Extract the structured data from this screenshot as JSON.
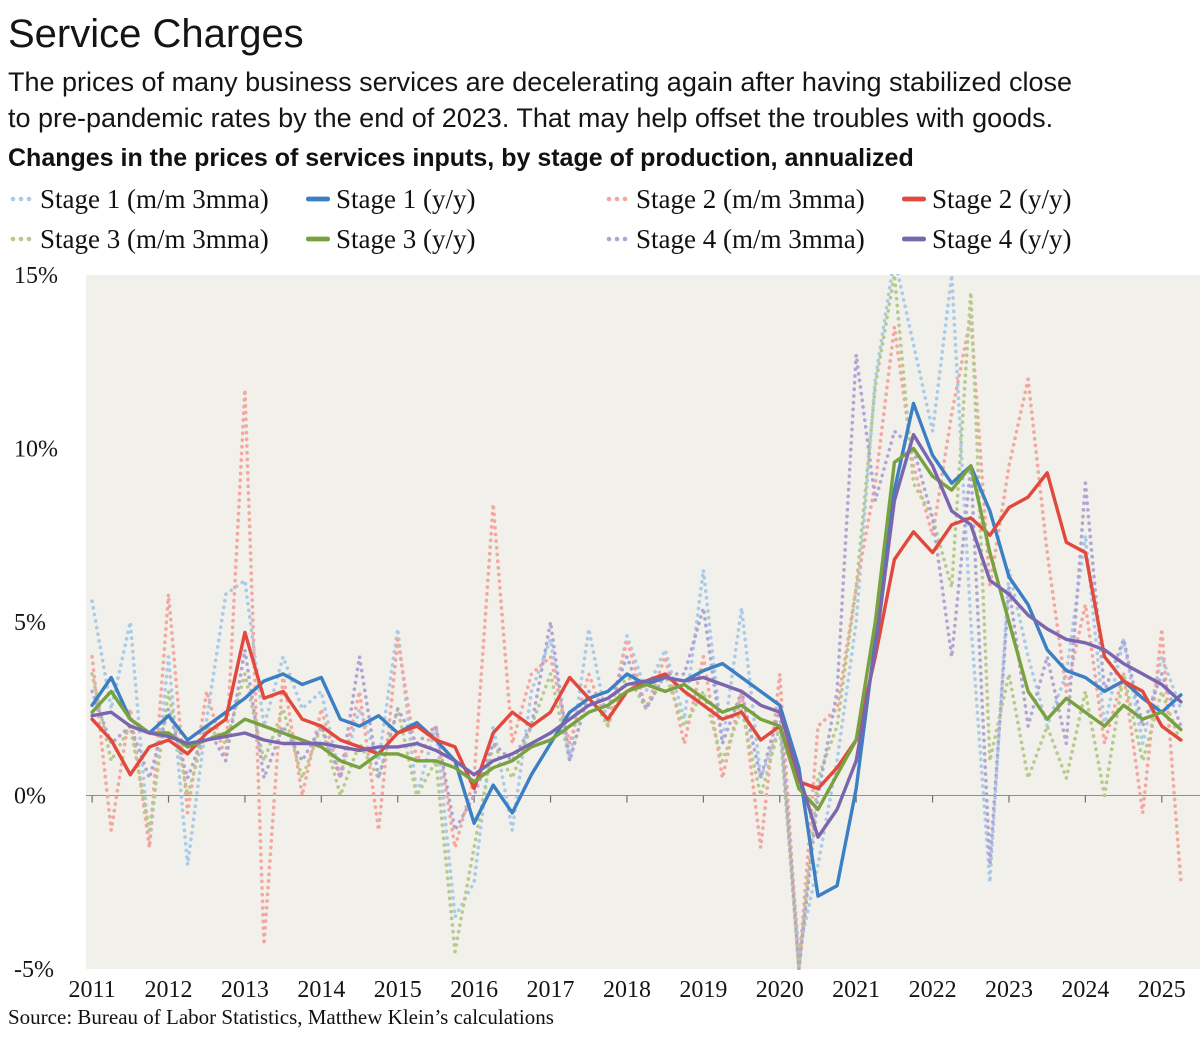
{
  "header": {
    "title": "Service Charges",
    "subtitle": "The prices of many business services are decelerating again after having stabilized close to pre-pandemic rates by the end of 2023. That may help offset the troubles with goods.",
    "heading": "Changes in the prices of services inputs, by stage of production, annualized"
  },
  "footer": {
    "source": "Source: Bureau of Labor Statistics, Matthew Klein’s calculations"
  },
  "colors": {
    "plot_background": "#f2f0ea",
    "zero_line": "#8f8f8f",
    "tick": "#6f6f6f",
    "text": "#151515"
  },
  "chart_data": {
    "type": "line",
    "title": "Changes in the prices of services inputs, by stage of production, annualized",
    "xlabel": "",
    "ylabel": "",
    "ylim": [
      -5,
      15
    ],
    "xlim": [
      2010.92,
      2025.5
    ],
    "grid": false,
    "legend_position": "top",
    "yticks": [
      {
        "value": 15,
        "label": "15%"
      },
      {
        "value": 10,
        "label": "10%"
      },
      {
        "value": 5,
        "label": "5%"
      },
      {
        "value": 0,
        "label": "0%"
      },
      {
        "value": -5,
        "label": "-5%"
      }
    ],
    "xticks": [
      {
        "value": 2011,
        "label": "2011"
      },
      {
        "value": 2012,
        "label": "2012"
      },
      {
        "value": 2013,
        "label": "2013"
      },
      {
        "value": 2014,
        "label": "2014"
      },
      {
        "value": 2015,
        "label": "2015"
      },
      {
        "value": 2016,
        "label": "2016"
      },
      {
        "value": 2017,
        "label": "2017"
      },
      {
        "value": 2018,
        "label": "2018"
      },
      {
        "value": 2019,
        "label": "2019"
      },
      {
        "value": 2020,
        "label": "2020"
      },
      {
        "value": 2021,
        "label": "2021"
      },
      {
        "value": 2022,
        "label": "2022"
      },
      {
        "value": 2023,
        "label": "2023"
      },
      {
        "value": 2024,
        "label": "2024"
      },
      {
        "value": 2025,
        "label": "2025"
      }
    ],
    "x": [
      2011.0,
      2011.25,
      2011.5,
      2011.75,
      2012.0,
      2012.25,
      2012.5,
      2012.75,
      2013.0,
      2013.25,
      2013.5,
      2013.75,
      2014.0,
      2014.25,
      2014.5,
      2014.75,
      2015.0,
      2015.25,
      2015.5,
      2015.75,
      2016.0,
      2016.25,
      2016.5,
      2016.75,
      2017.0,
      2017.25,
      2017.5,
      2017.75,
      2018.0,
      2018.25,
      2018.5,
      2018.75,
      2019.0,
      2019.25,
      2019.5,
      2019.75,
      2020.0,
      2020.25,
      2020.5,
      2020.75,
      2021.0,
      2021.25,
      2021.5,
      2021.75,
      2022.0,
      2022.25,
      2022.5,
      2022.75,
      2023.0,
      2023.25,
      2023.5,
      2023.75,
      2024.0,
      2024.25,
      2024.5,
      2024.75,
      2025.0,
      2025.25
    ],
    "series": [
      {
        "name": "Stage 1 (m/m 3mma)",
        "style": "dotted",
        "color": "#a9cbe8",
        "values": [
          5.6,
          2.5,
          5.0,
          -1.5,
          4.0,
          -2.0,
          2.2,
          5.8,
          6.2,
          2.0,
          4.0,
          2.5,
          3.0,
          0.5,
          2.5,
          1.0,
          4.8,
          0.0,
          2.0,
          -3.5,
          -2.5,
          2.0,
          -1.0,
          3.0,
          4.5,
          1.0,
          4.8,
          2.0,
          4.6,
          3.0,
          4.2,
          2.2,
          6.5,
          1.5,
          5.4,
          0.5,
          2.0,
          -4.5,
          -2.0,
          1.0,
          5.0,
          12.0,
          15.5,
          13.0,
          10.5,
          15.0,
          5.0,
          -2.5,
          6.5,
          4.0,
          2.0,
          3.5,
          7.5,
          2.0,
          4.5,
          1.5,
          4.0,
          2.5
        ]
      },
      {
        "name": "Stage 1 (y/y)",
        "style": "solid",
        "color": "#3b7fc4",
        "values": [
          2.6,
          3.4,
          2.2,
          1.8,
          2.3,
          1.6,
          2.0,
          2.4,
          2.8,
          3.3,
          3.5,
          3.2,
          3.4,
          2.2,
          2.0,
          2.3,
          1.8,
          2.1,
          1.6,
          1.0,
          -0.8,
          0.3,
          -0.5,
          0.6,
          1.5,
          2.4,
          2.8,
          3.0,
          3.5,
          3.2,
          3.4,
          3.3,
          3.6,
          3.8,
          3.4,
          3.0,
          2.6,
          0.8,
          -2.9,
          -2.6,
          0.2,
          4.5,
          8.8,
          11.3,
          9.8,
          9.0,
          9.5,
          8.2,
          6.3,
          5.5,
          4.2,
          3.6,
          3.4,
          3.0,
          3.3,
          2.8,
          2.4,
          2.9
        ]
      },
      {
        "name": "Stage 2 (m/m 3mma)",
        "style": "dotted",
        "color": "#f4a79f",
        "values": [
          4.0,
          -1.0,
          2.5,
          -1.5,
          5.8,
          -0.5,
          3.0,
          1.0,
          11.7,
          -4.3,
          3.5,
          0.0,
          2.5,
          0.5,
          3.0,
          -1.0,
          4.5,
          1.0,
          2.0,
          -1.5,
          0.5,
          8.4,
          1.5,
          3.5,
          4.0,
          1.5,
          3.5,
          2.0,
          4.5,
          2.5,
          4.0,
          1.5,
          4.0,
          0.5,
          3.0,
          -1.5,
          3.5,
          -5.0,
          2.0,
          2.5,
          6.0,
          9.0,
          13.5,
          9.5,
          7.5,
          11.0,
          13.8,
          6.0,
          9.5,
          12.0,
          7.0,
          3.0,
          5.5,
          1.5,
          3.5,
          -0.5,
          4.8,
          -2.5
        ]
      },
      {
        "name": "Stage 2 (y/y)",
        "style": "solid",
        "color": "#e2493d",
        "values": [
          2.2,
          1.6,
          0.6,
          1.4,
          1.6,
          1.2,
          1.8,
          2.2,
          4.7,
          2.8,
          3.0,
          2.2,
          2.0,
          1.6,
          1.4,
          1.2,
          1.8,
          2.0,
          1.6,
          1.4,
          0.2,
          1.8,
          2.4,
          2.0,
          2.4,
          3.4,
          2.8,
          2.2,
          3.0,
          3.3,
          3.5,
          3.0,
          2.6,
          2.2,
          2.4,
          1.6,
          2.0,
          0.4,
          0.2,
          0.8,
          1.6,
          4.0,
          6.8,
          7.6,
          7.0,
          7.8,
          8.0,
          7.5,
          8.3,
          8.6,
          9.3,
          7.3,
          7.0,
          4.0,
          3.3,
          3.0,
          2.0,
          1.6
        ]
      },
      {
        "name": "Stage 3 (m/m 3mma)",
        "style": "dotted",
        "color": "#b6ca8c",
        "values": [
          3.5,
          1.0,
          2.0,
          -1.0,
          3.0,
          0.0,
          2.0,
          1.5,
          3.5,
          1.0,
          2.5,
          0.5,
          2.0,
          0.0,
          1.5,
          0.5,
          2.5,
          0.0,
          1.0,
          -4.5,
          -1.5,
          1.5,
          0.5,
          2.0,
          3.5,
          1.0,
          3.0,
          2.0,
          3.5,
          2.5,
          3.5,
          2.0,
          3.0,
          1.0,
          2.5,
          0.0,
          2.0,
          -5.0,
          0.5,
          2.0,
          6.0,
          11.8,
          15.0,
          9.0,
          8.0,
          6.0,
          14.5,
          1.0,
          3.5,
          0.5,
          2.0,
          0.5,
          3.0,
          0.0,
          3.5,
          1.0,
          3.0,
          1.5
        ]
      },
      {
        "name": "Stage 3 (y/y)",
        "style": "solid",
        "color": "#78a240",
        "values": [
          2.4,
          3.0,
          2.2,
          1.8,
          1.8,
          1.4,
          1.6,
          1.8,
          2.2,
          2.0,
          1.8,
          1.6,
          1.4,
          1.0,
          0.8,
          1.2,
          1.2,
          1.0,
          1.0,
          0.8,
          0.4,
          0.8,
          1.0,
          1.4,
          1.6,
          2.0,
          2.4,
          2.6,
          3.0,
          3.2,
          3.0,
          3.2,
          2.8,
          2.4,
          2.6,
          2.2,
          2.0,
          0.2,
          -0.4,
          0.6,
          1.6,
          5.0,
          9.6,
          10.0,
          9.2,
          8.8,
          9.5,
          7.0,
          5.0,
          3.0,
          2.2,
          2.8,
          2.4,
          2.0,
          2.6,
          2.2,
          2.4,
          1.9
        ]
      },
      {
        "name": "Stage 4 (m/m 3mma)",
        "style": "dotted",
        "color": "#b0a6d6",
        "values": [
          3.0,
          1.5,
          2.0,
          0.5,
          2.5,
          0.5,
          2.0,
          1.0,
          4.2,
          0.5,
          2.0,
          1.0,
          2.0,
          0.5,
          4.0,
          0.5,
          2.5,
          1.5,
          2.0,
          -1.0,
          0.0,
          1.5,
          1.0,
          2.0,
          5.0,
          1.0,
          3.0,
          2.5,
          4.0,
          2.5,
          3.5,
          3.5,
          5.4,
          1.5,
          3.0,
          0.5,
          2.5,
          -5.0,
          0.0,
          3.0,
          12.7,
          8.5,
          10.5,
          10.0,
          8.0,
          4.0,
          9.5,
          -2.0,
          6.0,
          2.0,
          4.0,
          1.5,
          9.0,
          3.0,
          4.5,
          2.0,
          3.5,
          2.0
        ]
      },
      {
        "name": "Stage 4 (y/y)",
        "style": "solid",
        "color": "#7a66ae",
        "values": [
          2.3,
          2.4,
          2.0,
          1.8,
          1.7,
          1.5,
          1.6,
          1.7,
          1.8,
          1.6,
          1.5,
          1.5,
          1.5,
          1.4,
          1.3,
          1.4,
          1.4,
          1.5,
          1.3,
          1.0,
          0.6,
          1.0,
          1.2,
          1.5,
          1.8,
          2.2,
          2.6,
          2.8,
          3.2,
          3.3,
          3.4,
          3.3,
          3.4,
          3.2,
          3.0,
          2.6,
          2.4,
          0.6,
          -1.2,
          -0.4,
          1.0,
          4.2,
          8.5,
          10.4,
          9.5,
          8.2,
          7.8,
          6.2,
          5.8,
          5.2,
          4.8,
          4.5,
          4.4,
          4.2,
          3.8,
          3.5,
          3.2,
          2.7
        ]
      }
    ]
  }
}
